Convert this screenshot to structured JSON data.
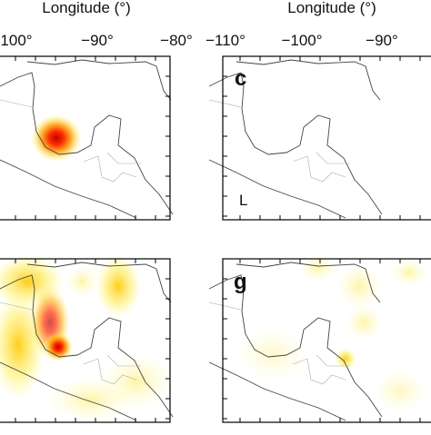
{
  "header": {
    "axis_titles": [
      "Longitude (°)",
      "Longitude (°)"
    ]
  },
  "ticks_left": [
    "100°",
    "−90°",
    "−80°"
  ],
  "ticks_right": [
    "−110°",
    "−100°",
    "−90°"
  ],
  "panels": [
    {
      "label": "c",
      "note": "L"
    },
    {
      "label": "g"
    }
  ]
}
